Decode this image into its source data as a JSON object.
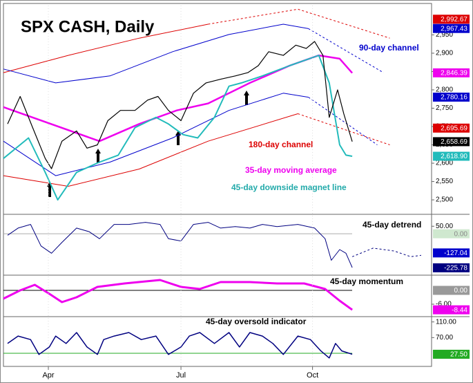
{
  "chart_data": [
    {
      "type": "line",
      "title": "SPX CASH, Daily",
      "xlim": [
        0,
        205
      ],
      "ylim": [
        2470,
        3030
      ],
      "yticks": [
        {
          "value": 2500,
          "label": "2,500"
        },
        {
          "value": 2550,
          "label": "2,550"
        },
        {
          "value": 2600,
          "label": "2,600"
        },
        {
          "value": 2650,
          "label": "2,650"
        },
        {
          "value": 2700,
          "label": "2,700"
        },
        {
          "value": 2750,
          "label": "2,750"
        },
        {
          "value": 2800,
          "label": "2,800"
        },
        {
          "value": 2850,
          "label": "2,850"
        },
        {
          "value": 2900,
          "label": "2,900"
        },
        {
          "value": 2950,
          "label": "2,950"
        }
      ],
      "series": [
        {
          "color": "#dd0000",
          "x": [
            0,
            31,
            65,
            98,
            141
          ],
          "values": [
            2566,
            2537,
            2584,
            2660,
            2735
          ]
        },
        {
          "color": "#dd0000",
          "dash": true,
          "x": [
            141,
            185
          ],
          "values": [
            2735,
            2650
          ]
        },
        {
          "color": "#dd0000",
          "x": [
            0,
            31,
            65,
            98
          ],
          "values": [
            2847,
            2894,
            2941,
            2979
          ]
        },
        {
          "color": "#dd0000",
          "dash": true,
          "x": [
            98,
            141,
            185
          ],
          "values": [
            2979,
            3020,
            2941
          ]
        },
        {
          "color": "#0000cc",
          "x": [
            0,
            25,
            51,
            81,
            108,
            134,
            146
          ],
          "values": [
            2857,
            2819,
            2838,
            2904,
            2951,
            2979,
            2967
          ]
        },
        {
          "color": "#0000cc",
          "dash": true,
          "x": [
            146,
            182
          ],
          "values": [
            2967,
            2847
          ]
        },
        {
          "color": "#0000cc",
          "x": [
            0,
            25,
            51,
            81,
            108,
            134,
            146
          ],
          "values": [
            2660,
            2566,
            2603,
            2669,
            2744,
            2791,
            2780
          ]
        },
        {
          "color": "#0000cc",
          "dash": true,
          "x": [
            146,
            179
          ],
          "values": [
            2780,
            2650
          ]
        },
        {
          "color": "#ee00ee",
          "width": 2.5,
          "x": [
            0,
            46,
            65,
            83,
            98,
            118,
            137,
            151,
            161,
            167
          ],
          "values": [
            2753,
            2660,
            2707,
            2744,
            2763,
            2819,
            2866,
            2894,
            2885,
            2846
          ]
        },
        {
          "color": "#22bbbb",
          "width": 2,
          "x": [
            0,
            12,
            20,
            26,
            35,
            46,
            55,
            63,
            73,
            79,
            86,
            93,
            101,
            108,
            114,
            124,
            137,
            151,
            156,
            161,
            164,
            167
          ],
          "values": [
            2613,
            2669,
            2575,
            2500,
            2575,
            2603,
            2622,
            2697,
            2725,
            2707,
            2678,
            2669,
            2725,
            2810,
            2819,
            2838,
            2866,
            2894,
            2819,
            2650,
            2622,
            2619
          ]
        },
        {
          "color": "#000000",
          "width": 1.2,
          "x": [
            2,
            8,
            14,
            20,
            23,
            28,
            35,
            40,
            45,
            50,
            56,
            63,
            69,
            74,
            79,
            85,
            91,
            97,
            104,
            111,
            117,
            122,
            127,
            134,
            140,
            145,
            149,
            153,
            156,
            160,
            163,
            167
          ],
          "values": [
            2707,
            2782,
            2697,
            2613,
            2585,
            2660,
            2688,
            2641,
            2650,
            2716,
            2744,
            2744,
            2772,
            2782,
            2744,
            2716,
            2791,
            2819,
            2829,
            2838,
            2847,
            2866,
            2904,
            2894,
            2922,
            2913,
            2932,
            2894,
            2725,
            2800,
            2734,
            2659
          ]
        }
      ],
      "annotations": [
        {
          "text": "90-day channel",
          "color": "#0000cc"
        },
        {
          "text": "180-day channel",
          "color": "#dd0000"
        },
        {
          "text": "35-day moving average",
          "color": "#ee00ee"
        },
        {
          "text": "45-day downside magnet line",
          "color": "#22aaaa"
        }
      ],
      "value_boxes": [
        {
          "value": 2992.67,
          "label": "2,992.67",
          "color": "#dd0000",
          "text_color": "#ffffff"
        },
        {
          "value": 2967.43,
          "label": "2,967.43",
          "color": "#0000cc",
          "text_color": "#ffffff"
        },
        {
          "value": 2846.39,
          "label": "2,846.39",
          "color": "#ee00ee",
          "text_color": "#ffffff"
        },
        {
          "value": 2780.16,
          "label": "2,780.16",
          "color": "#0000cc",
          "text_color": "#ffffff"
        },
        {
          "value": 2695.69,
          "label": "2,695.69",
          "color": "#dd0000",
          "text_color": "#ffffff"
        },
        {
          "value": 2658.69,
          "label": "2,658.69",
          "color": "#000000",
          "text_color": "#ffffff"
        },
        {
          "value": 2618.9,
          "label": "2,618.90",
          "color": "#22bbbb",
          "text_color": "#ffffff"
        }
      ]
    },
    {
      "type": "line",
      "title": "45-day detrend",
      "xlim": [
        0,
        205
      ],
      "ylim": [
        -270,
        120
      ],
      "yticks": [
        {
          "value": 50,
          "label": "50.00"
        }
      ],
      "hlines": [
        {
          "value": 0,
          "color": "#aaaaaa"
        }
      ],
      "series": [
        {
          "color": "#000080",
          "x": [
            2,
            7,
            13,
            18,
            23,
            28,
            35,
            41,
            46,
            53,
            60,
            68,
            75,
            79,
            85,
            91,
            98,
            104,
            111,
            118,
            124,
            131,
            141,
            149,
            154,
            157,
            161,
            164,
            167
          ],
          "values": [
            -10,
            38,
            62,
            -81,
            -129,
            -57,
            38,
            14,
            -33,
            62,
            62,
            76,
            62,
            -33,
            -48,
            62,
            76,
            38,
            48,
            38,
            62,
            48,
            62,
            38,
            -33,
            -176,
            -105,
            -129,
            -224
          ]
        },
        {
          "color": "#000080",
          "dash": true,
          "x": [
            167,
            177,
            187,
            195,
            200
          ],
          "values": [
            -152,
            -95,
            -114,
            -152,
            -143
          ]
        }
      ],
      "value_boxes": [
        {
          "value": 0,
          "label": "0.00",
          "color": "#cfe8cf",
          "text_color": "#888888"
        },
        {
          "value": -127.04,
          "label": "-127.04",
          "color": "#0000cc",
          "text_color": "#ffffff"
        },
        {
          "value": -225.78,
          "label": "-225.78",
          "color": "#000080",
          "text_color": "#ffffff"
        }
      ]
    },
    {
      "type": "line",
      "title": "45-day momentum",
      "xlim": [
        0,
        205
      ],
      "ylim": [
        -11.4,
        6
      ],
      "yticks": [
        {
          "value": -6,
          "label": "-6.00"
        }
      ],
      "hlines": [
        {
          "value": 0,
          "color": "#000000"
        }
      ],
      "series": [
        {
          "color": "#ee00ee",
          "width": 3,
          "x": [
            0,
            8,
            15,
            22,
            28,
            35,
            45,
            58,
            75,
            85,
            94,
            104,
            118,
            131,
            144,
            154,
            161,
            167
          ],
          "values": [
            -3.6,
            0,
            2.4,
            -1.5,
            -5.1,
            -3,
            1.5,
            3,
            4.5,
            1.5,
            0.6,
            3.6,
            3.6,
            3,
            3,
            0.6,
            -4.5,
            -8.44
          ]
        }
      ],
      "value_boxes": [
        {
          "value": 0,
          "label": "0.00",
          "color": "#999999",
          "text_color": "#ffffff"
        },
        {
          "value": -8.44,
          "label": "-8.44",
          "color": "#ee00ee",
          "text_color": "#ffffff"
        }
      ]
    },
    {
      "type": "line",
      "title": "45-day oversold indicator",
      "xlim": [
        0,
        205
      ],
      "ylim": [
        0,
        120
      ],
      "yticks": [
        {
          "value": 110,
          "label": "110.00"
        },
        {
          "value": 70,
          "label": "70.00"
        }
      ],
      "xticks": [
        {
          "value": 21.5,
          "label": "Apr"
        },
        {
          "value": 85,
          "label": "Jul"
        },
        {
          "value": 148,
          "label": "Oct"
        }
      ],
      "hlines": [
        {
          "value": 30,
          "color": "#22aa22"
        }
      ],
      "series": [
        {
          "color": "#000080",
          "width": 1.5,
          "x": [
            2,
            7,
            13,
            17,
            22,
            25,
            30,
            35,
            40,
            45,
            48,
            53,
            60,
            66,
            73,
            79,
            85,
            89,
            94,
            101,
            108,
            113,
            118,
            124,
            129,
            134,
            141,
            147,
            152,
            156,
            159,
            162,
            167
          ],
          "values": [
            55,
            74,
            65,
            27,
            46,
            74,
            55,
            83,
            46,
            27,
            65,
            74,
            83,
            65,
            74,
            27,
            46,
            74,
            83,
            55,
            83,
            46,
            83,
            74,
            55,
            27,
            74,
            65,
            36,
            18,
            55,
            36,
            27.5
          ]
        }
      ],
      "value_boxes": [
        {
          "value": 27.5,
          "label": "27.50",
          "color": "#22aa22",
          "text_color": "#ffffff"
        }
      ]
    }
  ]
}
